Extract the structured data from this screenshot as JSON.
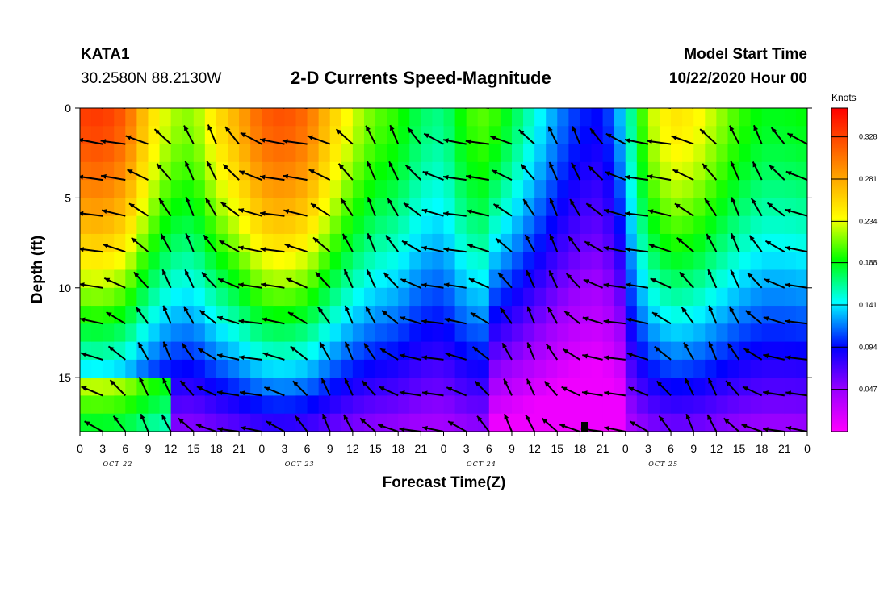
{
  "header": {
    "station_id": "KATA1",
    "coords": "30.2580N 88.2130W",
    "title": "2-D Currents Speed-Magnitude",
    "model_start_label": "Model Start Time",
    "model_start_value": "10/22/2020 Hour 00"
  },
  "chart_data": {
    "type": "heatmap",
    "title": "2-D Currents Speed-Magnitude",
    "xlabel": "Forecast Time(Z)",
    "ylabel": "Depth (ft)",
    "x_tick_labels": [
      "0",
      "3",
      "6",
      "9",
      "12",
      "15",
      "18",
      "21",
      "0",
      "3",
      "6",
      "9",
      "12",
      "15",
      "18",
      "21",
      "0",
      "3",
      "6",
      "9",
      "12",
      "15",
      "18",
      "21",
      "0",
      "3",
      "6",
      "9",
      "12",
      "15",
      "18",
      "21",
      "0"
    ],
    "x_range_hours": [
      0,
      96
    ],
    "date_labels": [
      "OCT 22",
      "OCT 23",
      "OCT 24",
      "OCT 25"
    ],
    "y_tick_labels": [
      "0",
      "5",
      "10",
      "15"
    ],
    "y_ticks": [
      0,
      5,
      10,
      15
    ],
    "ylim": [
      0,
      18
    ],
    "y_inverted": true,
    "colorbar": {
      "unit": "Knots",
      "labels": [
        "0.328",
        "0.281",
        "0.234",
        "0.188",
        "0.141",
        "0.094",
        "0.047"
      ],
      "range": [
        0,
        0.36
      ]
    },
    "legend_position": "right"
  }
}
